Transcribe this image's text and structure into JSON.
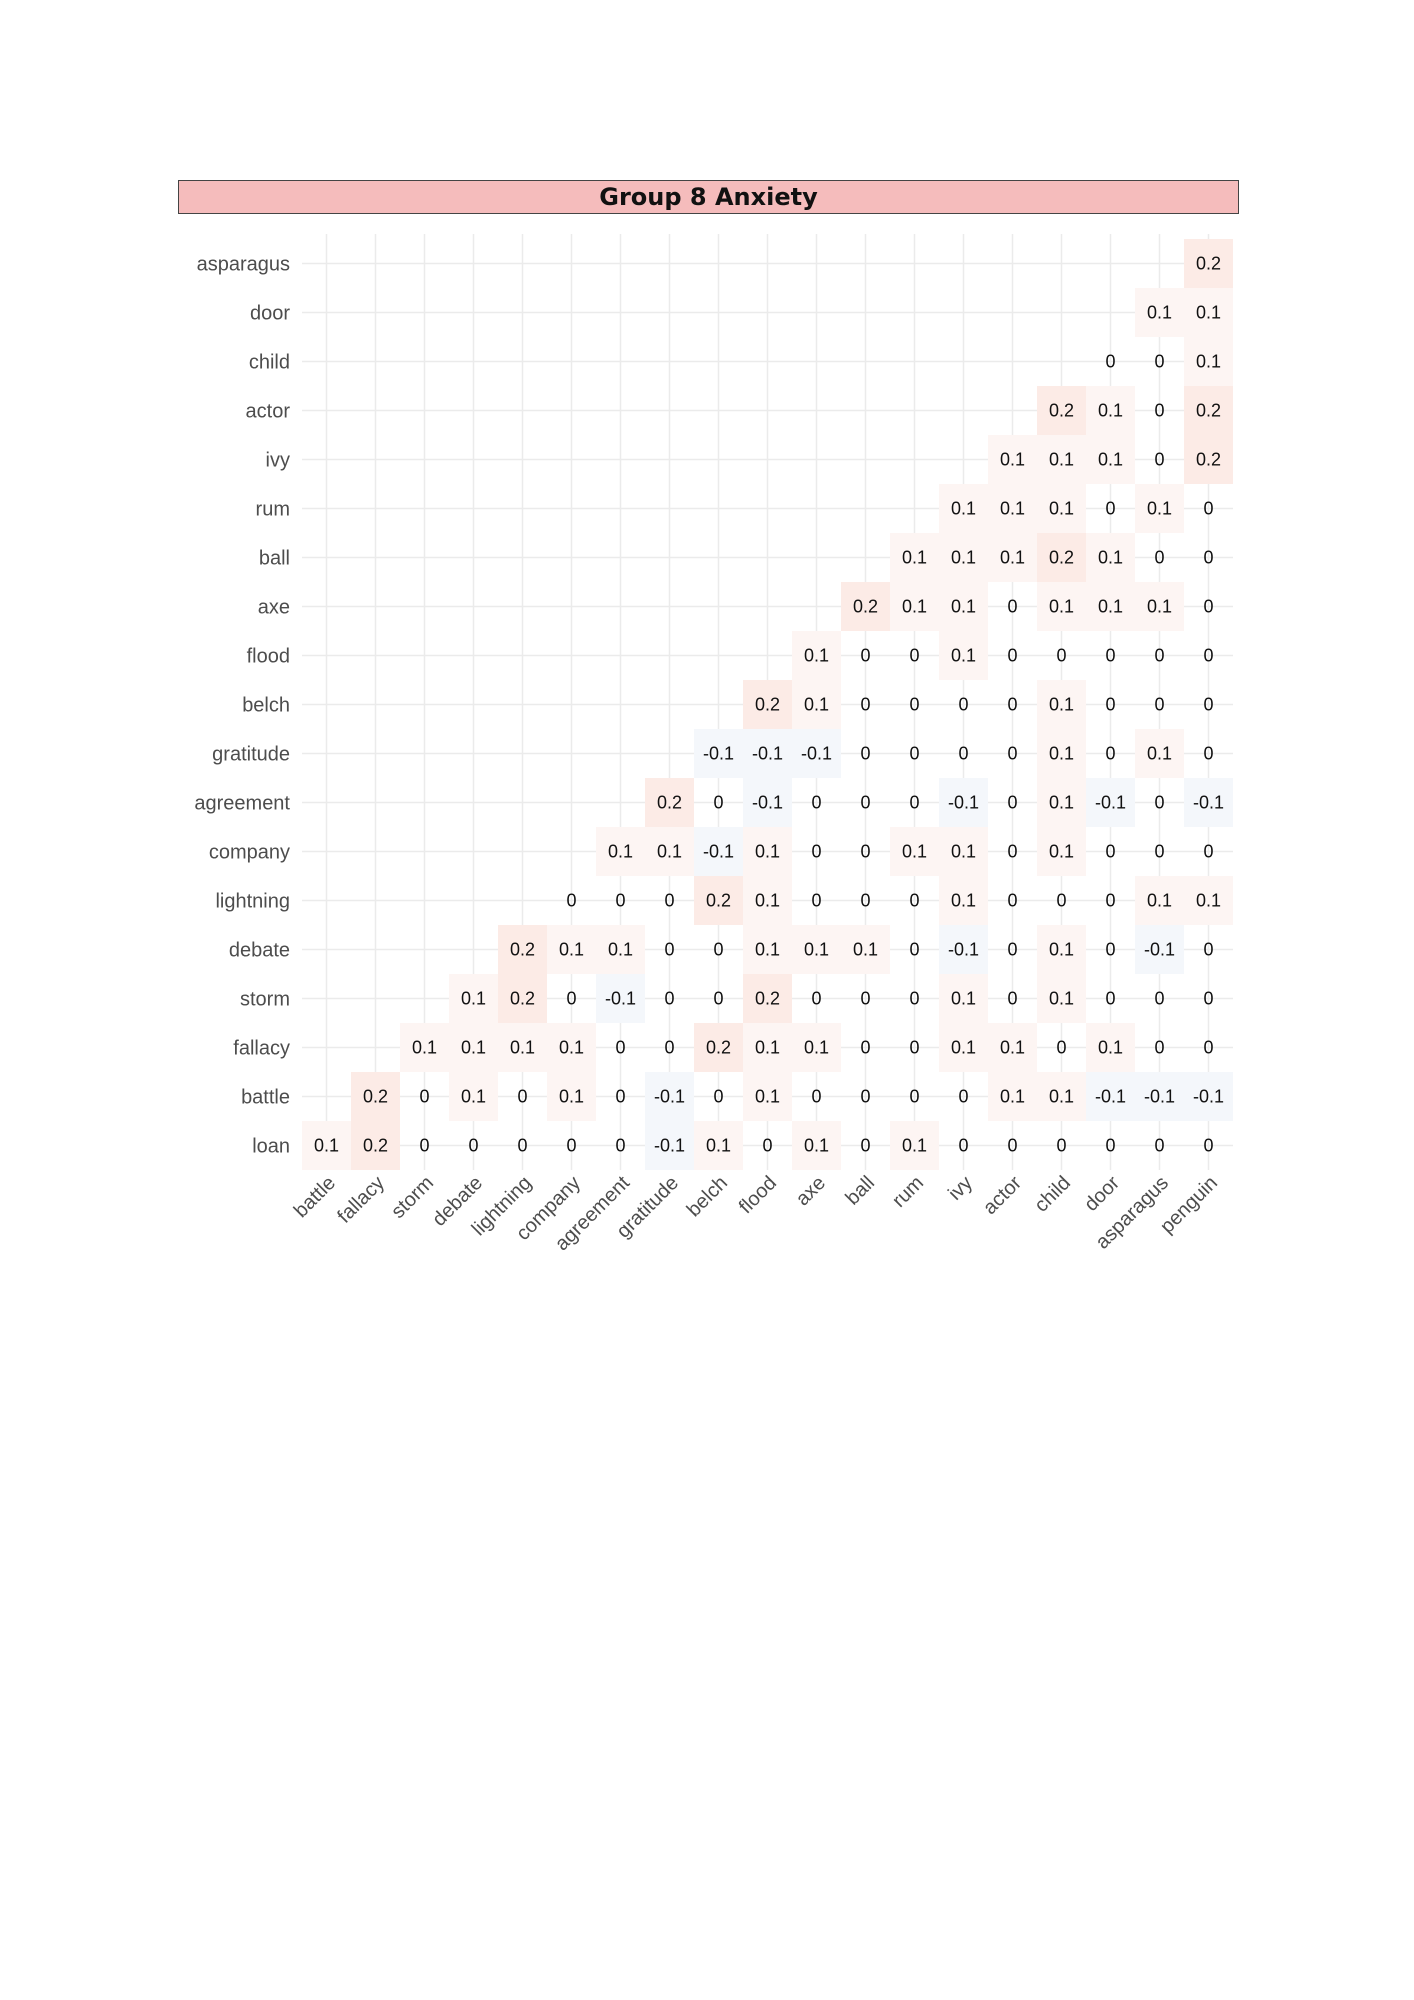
{
  "chart_data": {
    "type": "heatmap",
    "title": "Group 8 Anxiety",
    "x_labels": [
      "battle",
      "fallacy",
      "storm",
      "debate",
      "lightning",
      "company",
      "agreement",
      "gratitude",
      "belch",
      "flood",
      "axe",
      "ball",
      "rum",
      "ivy",
      "actor",
      "child",
      "door",
      "asparagus",
      "penguin"
    ],
    "y_labels_top_to_bottom": [
      "asparagus",
      "door",
      "child",
      "actor",
      "ivy",
      "rum",
      "ball",
      "axe",
      "flood",
      "belch",
      "gratitude",
      "agreement",
      "company",
      "lightning",
      "debate",
      "storm",
      "fallacy",
      "battle",
      "loan"
    ],
    "rows": [
      [
        null,
        null,
        null,
        null,
        null,
        null,
        null,
        null,
        null,
        null,
        null,
        null,
        null,
        null,
        null,
        null,
        null,
        null,
        0.2
      ],
      [
        null,
        null,
        null,
        null,
        null,
        null,
        null,
        null,
        null,
        null,
        null,
        null,
        null,
        null,
        null,
        null,
        null,
        0.1,
        0.1
      ],
      [
        null,
        null,
        null,
        null,
        null,
        null,
        null,
        null,
        null,
        null,
        null,
        null,
        null,
        null,
        null,
        null,
        0,
        0,
        0.1
      ],
      [
        null,
        null,
        null,
        null,
        null,
        null,
        null,
        null,
        null,
        null,
        null,
        null,
        null,
        null,
        null,
        0.2,
        0.1,
        0,
        0.2
      ],
      [
        null,
        null,
        null,
        null,
        null,
        null,
        null,
        null,
        null,
        null,
        null,
        null,
        null,
        null,
        0.1,
        0.1,
        0.1,
        0,
        0.2
      ],
      [
        null,
        null,
        null,
        null,
        null,
        null,
        null,
        null,
        null,
        null,
        null,
        null,
        null,
        0.1,
        0.1,
        0.1,
        0,
        0.1,
        0
      ],
      [
        null,
        null,
        null,
        null,
        null,
        null,
        null,
        null,
        null,
        null,
        null,
        null,
        0.1,
        0.1,
        0.1,
        0.2,
        0.1,
        0,
        0
      ],
      [
        null,
        null,
        null,
        null,
        null,
        null,
        null,
        null,
        null,
        null,
        null,
        0.2,
        0.1,
        0.1,
        0,
        0.1,
        0.1,
        0.1,
        0
      ],
      [
        null,
        null,
        null,
        null,
        null,
        null,
        null,
        null,
        null,
        null,
        0.1,
        0,
        0,
        0.1,
        0,
        0,
        0,
        0,
        0
      ],
      [
        null,
        null,
        null,
        null,
        null,
        null,
        null,
        null,
        null,
        0.2,
        0.1,
        0,
        0,
        0,
        0,
        0.1,
        0,
        0,
        0
      ],
      [
        null,
        null,
        null,
        null,
        null,
        null,
        null,
        null,
        -0.1,
        -0.1,
        -0.1,
        0,
        0,
        0,
        0,
        0.1,
        0,
        0.1,
        0
      ],
      [
        null,
        null,
        null,
        null,
        null,
        null,
        null,
        0.2,
        0,
        -0.1,
        0,
        0,
        0,
        -0.1,
        0,
        0.1,
        -0.1,
        0,
        -0.1
      ],
      [
        null,
        null,
        null,
        null,
        null,
        null,
        0.1,
        0.1,
        -0.1,
        0.1,
        0,
        0,
        0.1,
        0.1,
        0,
        0.1,
        0,
        0,
        0
      ],
      [
        null,
        null,
        null,
        null,
        null,
        0,
        0,
        0,
        0.2,
        0.1,
        0,
        0,
        0,
        0.1,
        0,
        0,
        0,
        0.1,
        0.1
      ],
      [
        null,
        null,
        null,
        null,
        0.2,
        0.1,
        0.1,
        0,
        0,
        0.1,
        0.1,
        0.1,
        0,
        -0.1,
        0,
        0.1,
        0,
        -0.1,
        0
      ],
      [
        null,
        null,
        null,
        0.1,
        0.2,
        0,
        -0.1,
        0,
        0,
        0.2,
        0,
        0,
        0,
        0.1,
        0,
        0.1,
        0,
        0,
        0
      ],
      [
        null,
        null,
        0.1,
        0.1,
        0.1,
        0.1,
        0,
        0,
        0.2,
        0.1,
        0.1,
        0,
        0,
        0.1,
        0.1,
        0,
        0.1,
        0,
        0
      ],
      [
        null,
        0.2,
        0,
        0.1,
        0,
        0.1,
        0,
        -0.1,
        0,
        0.1,
        0,
        0,
        0,
        0,
        0.1,
        0.1,
        -0.1,
        -0.1,
        -0.1
      ],
      [
        0.1,
        0.2,
        0,
        0,
        0,
        0,
        0,
        -0.1,
        0.1,
        0,
        0.1,
        0,
        0.1,
        0,
        0,
        0,
        0,
        0,
        0
      ]
    ],
    "display_rows": [
      [
        null,
        null,
        null,
        null,
        null,
        null,
        null,
        null,
        null,
        null,
        null,
        null,
        null,
        null,
        null,
        null,
        null,
        null,
        "0.2"
      ],
      [
        null,
        null,
        null,
        null,
        null,
        null,
        null,
        null,
        null,
        null,
        null,
        null,
        null,
        null,
        null,
        null,
        null,
        "0.1",
        "0.1"
      ],
      [
        null,
        null,
        null,
        null,
        null,
        null,
        null,
        null,
        null,
        null,
        null,
        null,
        null,
        null,
        null,
        null,
        "0",
        "0",
        "0.1"
      ],
      [
        null,
        null,
        null,
        null,
        null,
        null,
        null,
        null,
        null,
        null,
        null,
        null,
        null,
        null,
        null,
        "0.2",
        "0.1",
        "0",
        "0.2"
      ],
      [
        null,
        null,
        null,
        null,
        null,
        null,
        null,
        null,
        null,
        null,
        null,
        null,
        null,
        null,
        "0.1",
        "0.1",
        "0.1",
        "0",
        "0.2"
      ],
      [
        null,
        null,
        null,
        null,
        null,
        null,
        null,
        null,
        null,
        null,
        null,
        null,
        null,
        "0.1",
        "0.1",
        "0.1",
        "0",
        "0.1",
        "0"
      ],
      [
        null,
        null,
        null,
        null,
        null,
        null,
        null,
        null,
        null,
        null,
        null,
        null,
        "0.1",
        "0.1",
        "0.1",
        "0.2",
        "0.1",
        "0",
        "0"
      ],
      [
        null,
        null,
        null,
        null,
        null,
        null,
        null,
        null,
        null,
        null,
        null,
        "0.2",
        "0.1",
        "0.1",
        "0",
        "0.1",
        "0.1",
        "0.1",
        "0"
      ],
      [
        null,
        null,
        null,
        null,
        null,
        null,
        null,
        null,
        null,
        null,
        "0.1",
        "0",
        "0",
        "0.1",
        "0",
        "0",
        "0",
        "0",
        "0"
      ],
      [
        null,
        null,
        null,
        null,
        null,
        null,
        null,
        null,
        null,
        "0.2",
        "0.1",
        "0",
        "0",
        "0",
        "0",
        "0.1",
        "0",
        "0",
        "0"
      ],
      [
        null,
        null,
        null,
        null,
        null,
        null,
        null,
        null,
        "-0.1",
        "-0.1",
        "-0.1",
        "0",
        "0",
        "0",
        "0",
        "0.1",
        "0",
        "0.1",
        "0"
      ],
      [
        null,
        null,
        null,
        null,
        null,
        null,
        null,
        "0.2",
        "0",
        "-0.1",
        "0",
        "0",
        "0",
        "-0.1",
        "0",
        "0.1",
        "-0.1",
        "0",
        "-0.1"
      ],
      [
        null,
        null,
        null,
        null,
        null,
        null,
        "0.1",
        "0.1",
        "-0.1",
        "0.1",
        "0",
        "0",
        "0.1",
        "0.1",
        "0",
        "0.1",
        "0",
        "0",
        "0"
      ],
      [
        null,
        null,
        null,
        null,
        null,
        "0",
        "0",
        "0",
        "0.2",
        "0.1",
        "0",
        "0",
        "0",
        "0.1",
        "0",
        "0",
        "0",
        "0.1",
        "0.1"
      ],
      [
        null,
        null,
        null,
        null,
        "0.2",
        "0.1",
        "0.1",
        "0",
        "0",
        "0.1",
        "0.1",
        "0.1",
        "0",
        "-0.1",
        "0",
        "0.1",
        "0",
        "-0.1",
        "0"
      ],
      [
        null,
        null,
        null,
        "0.1",
        "0.2",
        "0",
        "-0.1",
        "0",
        "0",
        "0.2",
        "0",
        "0",
        "0",
        "0.1",
        "0",
        "0.1",
        "0",
        "0",
        "0"
      ],
      [
        null,
        null,
        "0.1",
        "0.1",
        "0.1",
        "0.1",
        "0",
        "0",
        "0.2",
        "0.1",
        "0.1",
        "0",
        "0",
        "0.1",
        "0.1",
        "0",
        "0.1",
        "0",
        "0"
      ],
      [
        null,
        "0.2",
        "0",
        "0.1",
        "0",
        "0.1",
        "0",
        "-0.1",
        "0",
        "0.1",
        "0",
        "0",
        "0",
        "0",
        "0.1",
        "0.1",
        "-0.1",
        "-0.1",
        "-0.1"
      ],
      [
        "0.1",
        "0.2",
        "0",
        "0",
        "0",
        "0",
        "0",
        "-0.1",
        "0.1",
        "0",
        "0.1",
        "0",
        "0.1",
        "0",
        "0",
        "0",
        "0",
        "0",
        "0"
      ]
    ],
    "colors": {
      "positive": "#e8704e",
      "negative": "#5b8fc7",
      "neutral": "#ffffff",
      "grid": "#ebebeb"
    }
  }
}
